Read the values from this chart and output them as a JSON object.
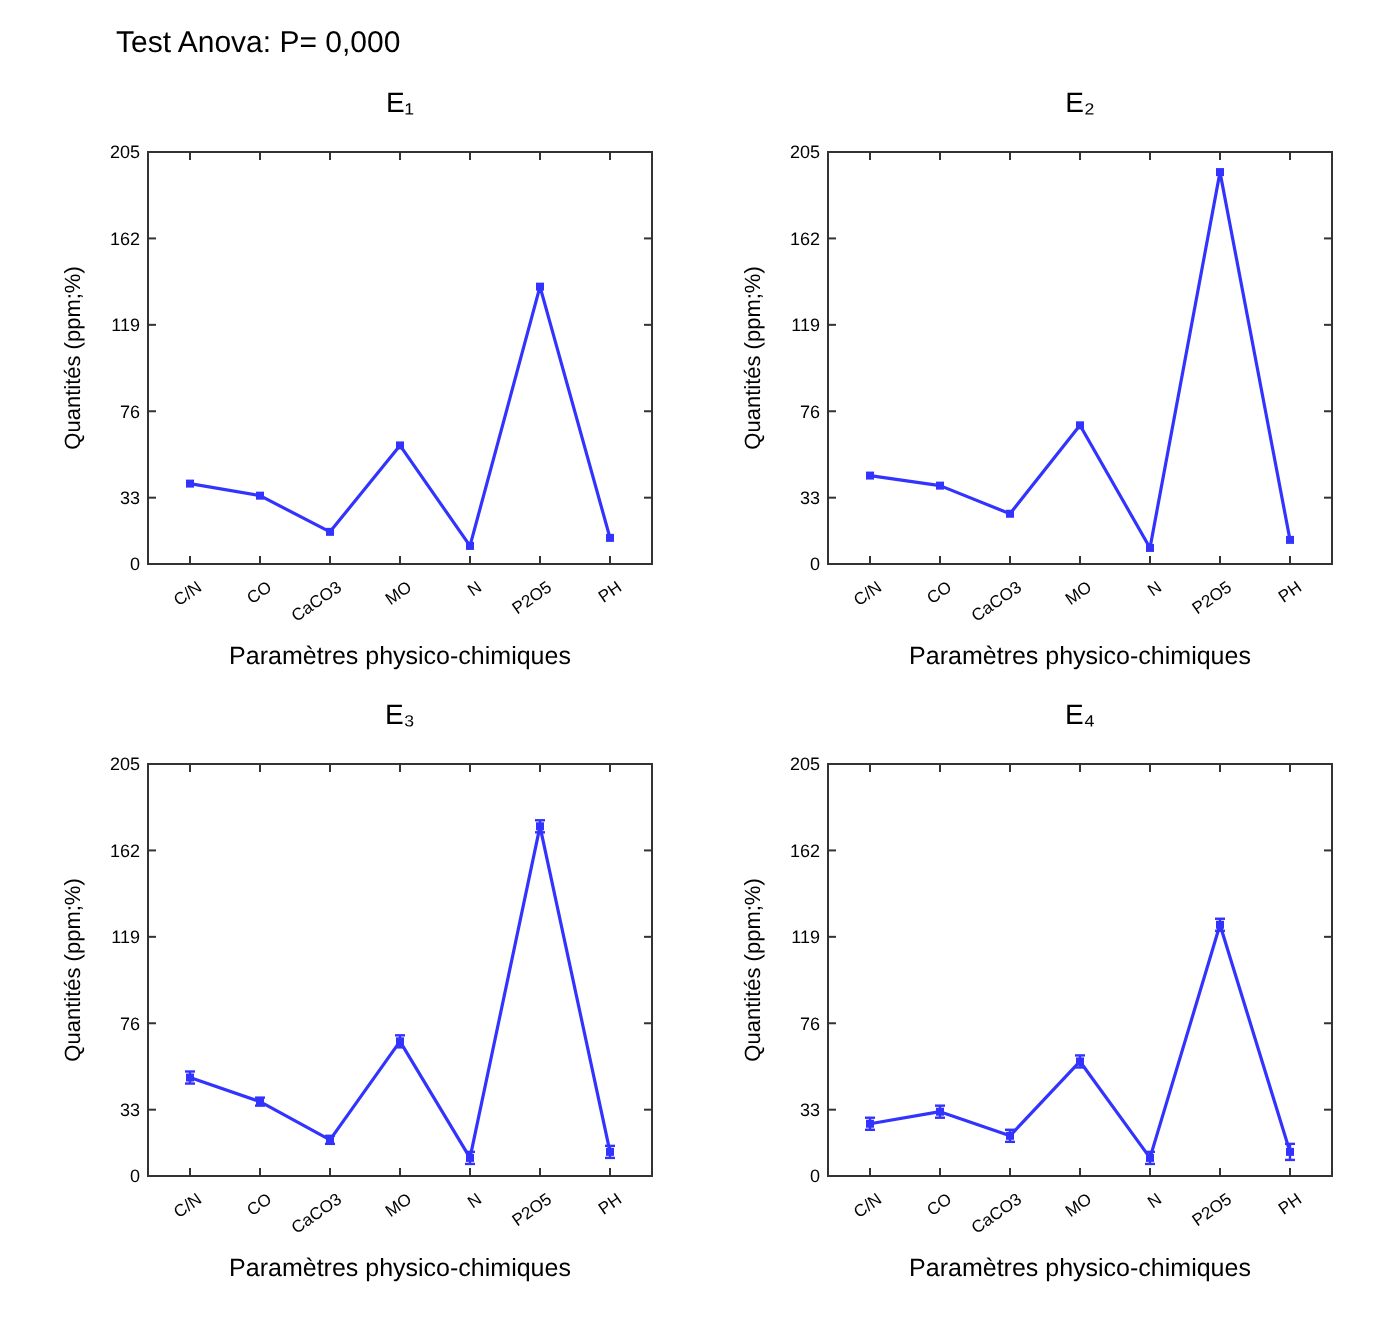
{
  "chart_data": [
    {
      "type": "line",
      "title": "E₁",
      "annotations": [
        "Test Anova:  P= 0,000"
      ],
      "xlabel": "Paramètres physico-chimiques",
      "ylabel": "Quantités (ppm;%)",
      "categories": [
        "C/N",
        "CO",
        "CaCO3",
        "MO",
        "N",
        "P2O5",
        "PH"
      ],
      "series": [
        {
          "color": "#3333ff",
          "values": [
            40,
            34,
            16,
            59,
            9,
            138,
            13
          ]
        }
      ],
      "ylim": [
        0,
        205
      ],
      "yticks": [
        0,
        33,
        76,
        119,
        162,
        205
      ],
      "marker": "square"
    },
    {
      "type": "line",
      "title": "E₂",
      "xlabel": "Paramètres physico-chimiques",
      "ylabel": "Quantités (ppm;%)",
      "categories": [
        "C/N",
        "CO",
        "CaCO3",
        "MO",
        "N",
        "P2O5",
        "PH"
      ],
      "series": [
        {
          "color": "#3333ff",
          "values": [
            44,
            39,
            25,
            69,
            8,
            195,
            12
          ]
        }
      ],
      "ylim": [
        0,
        205
      ],
      "yticks": [
        0,
        33,
        76,
        119,
        162,
        205
      ],
      "marker": "square"
    },
    {
      "type": "line",
      "title": "E₃",
      "xlabel": "Paramètres physico-chimiques",
      "ylabel": "Quantités (ppm;%)",
      "categories": [
        "C/N",
        "CO",
        "CaCO3",
        "MO",
        "N",
        "P2O5",
        "PH"
      ],
      "series": [
        {
          "color": "#3333ff",
          "values": [
            49,
            37,
            18,
            67,
            9,
            174,
            12
          ],
          "errors": [
            3,
            2,
            2,
            3,
            3,
            3,
            3
          ]
        }
      ],
      "ylim": [
        0,
        205
      ],
      "yticks": [
        0,
        33,
        76,
        119,
        162,
        205
      ],
      "marker": "square"
    },
    {
      "type": "line",
      "title": "E₄",
      "xlabel": "Paramètres physico-chimiques",
      "ylabel": "Quantités (ppm;%)",
      "categories": [
        "C/N",
        "CO",
        "CaCO3",
        "MO",
        "N",
        "P2O5",
        "PH"
      ],
      "series": [
        {
          "color": "#3333ff",
          "values": [
            26,
            32,
            20,
            57,
            9,
            125,
            12
          ],
          "errors": [
            3,
            3,
            3,
            3,
            3,
            3,
            4
          ]
        }
      ],
      "ylim": [
        0,
        205
      ],
      "yticks": [
        0,
        33,
        76,
        119,
        162,
        205
      ],
      "marker": "square"
    }
  ]
}
